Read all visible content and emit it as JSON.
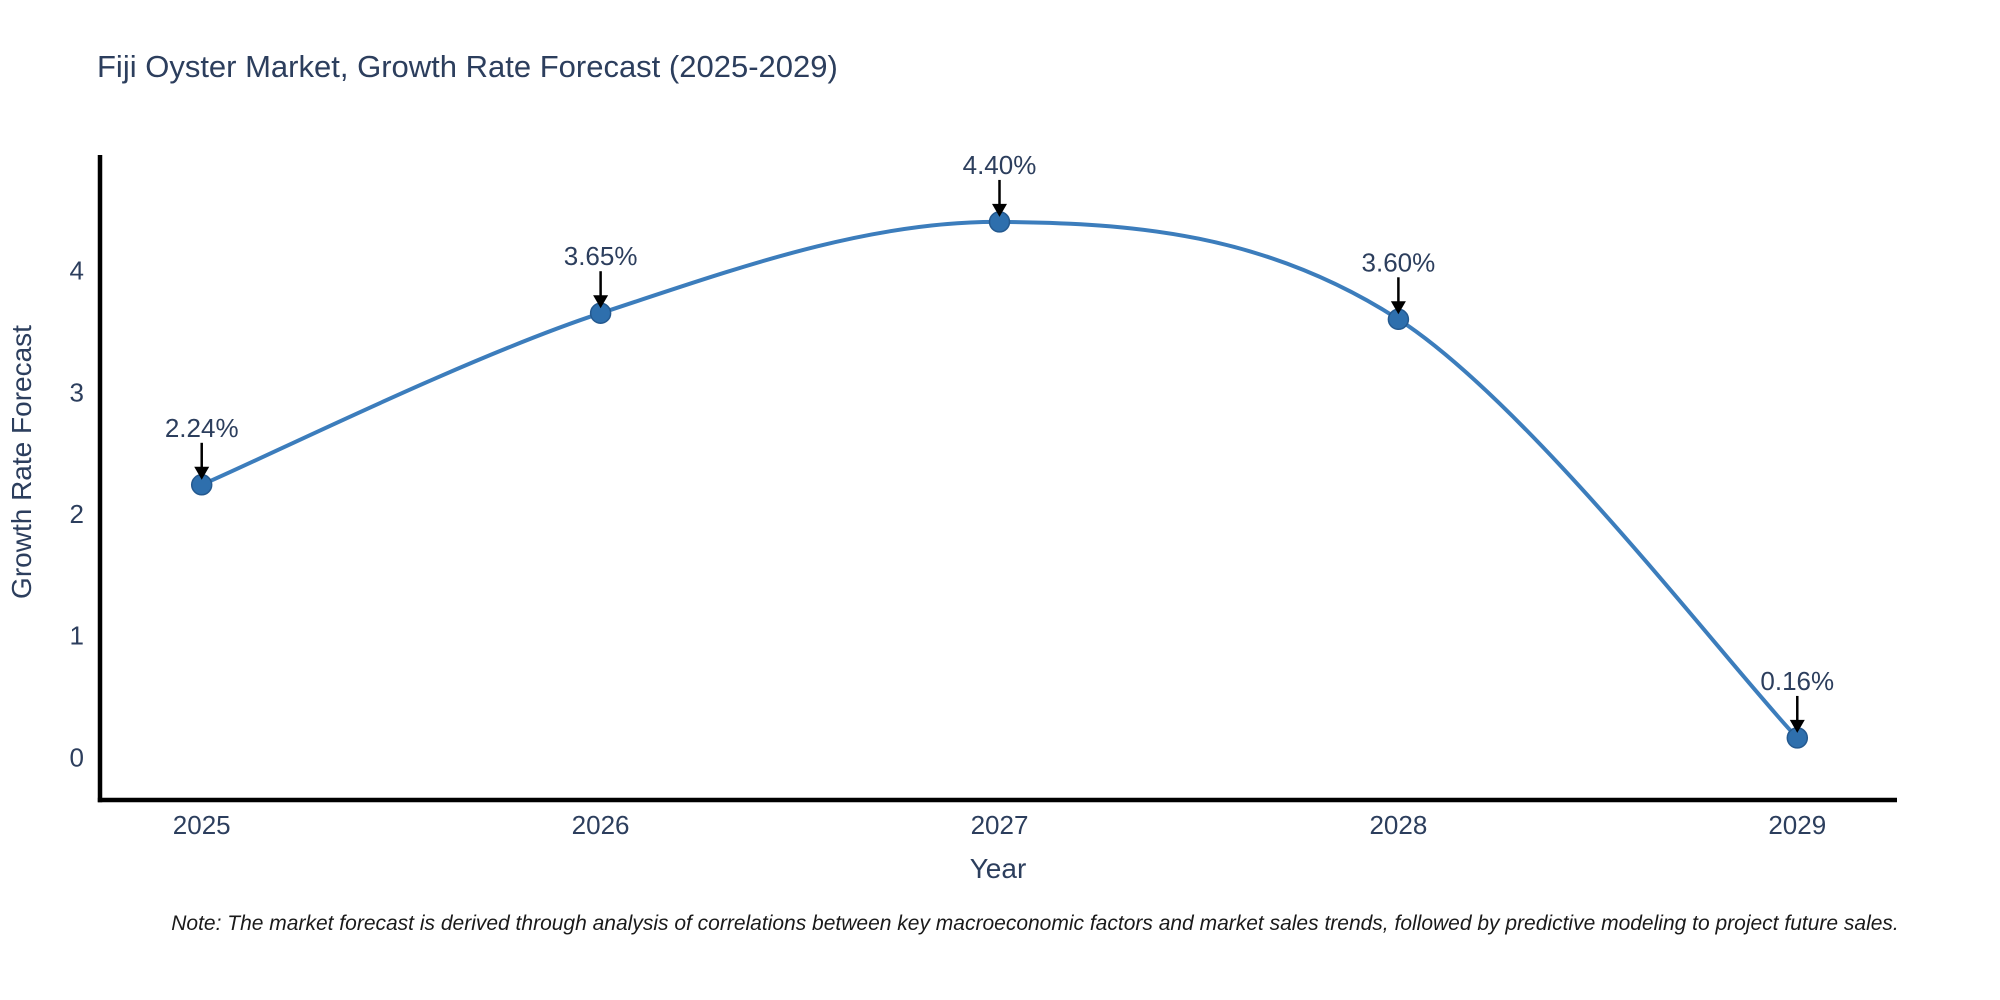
{
  "page": {
    "note": "Note: The market forecast is derived through analysis of correlations between key macroeconomic factors and market sales trends, followed by predictive modeling to project future sales."
  },
  "colors": {
    "background": "#FFFFFF",
    "line": "#3C7DBC",
    "marker_fill": "#2E6FAD",
    "marker_edge": "#24598F",
    "axis_line": "#000000",
    "text": "#2C3E5D",
    "arrow": "#000000",
    "note_text": "#1A1A1A"
  },
  "chart_data": {
    "type": "line",
    "title": "Fiji Oyster Market, Growth Rate Forecast (2025-2029)",
    "xlabel": "Year",
    "ylabel": "Growth Rate Forecast",
    "x": [
      2025,
      2026,
      2027,
      2028,
      2029
    ],
    "values": [
      2.24,
      3.65,
      4.4,
      3.6,
      0.16
    ],
    "point_labels": [
      "2.24%",
      "3.65%",
      "4.40%",
      "3.60%",
      "0.16%"
    ],
    "x_tick_labels": [
      "2025",
      "2026",
      "2027",
      "2028",
      "2029"
    ],
    "y_ticks": [
      0,
      1,
      2,
      3,
      4
    ],
    "y_tick_labels": [
      "0",
      "1",
      "2",
      "3",
      "4"
    ],
    "xlim": [
      2024.745,
      2029.25
    ],
    "ylim": [
      -0.35,
      4.95
    ],
    "grid": false,
    "legend": "none",
    "line_shape": "spline",
    "annotations_have_arrows": true
  }
}
